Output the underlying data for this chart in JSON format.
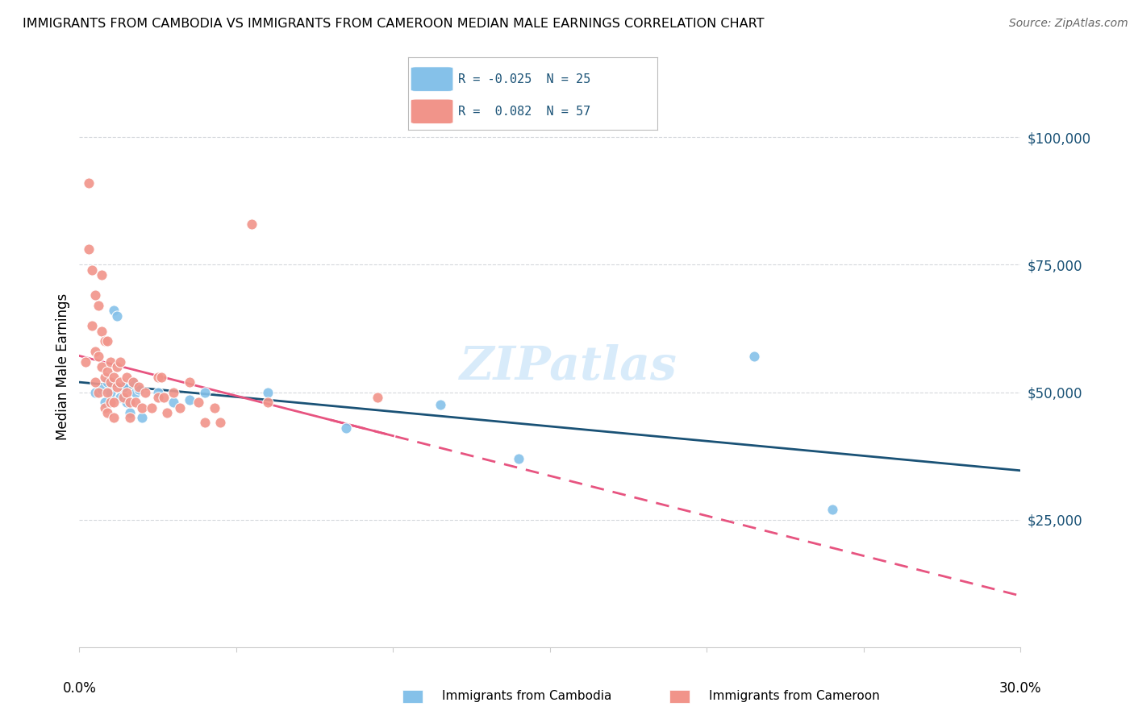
{
  "title": "IMMIGRANTS FROM CAMBODIA VS IMMIGRANTS FROM CAMEROON MEDIAN MALE EARNINGS CORRELATION CHART",
  "source": "Source: ZipAtlas.com",
  "ylabel": "Median Male Earnings",
  "y_ticks": [
    0,
    25000,
    50000,
    75000,
    100000
  ],
  "y_tick_labels": [
    "",
    "$25,000",
    "$50,000",
    "$75,000",
    "$100,000"
  ],
  "xlim": [
    0.0,
    0.3
  ],
  "ylim": [
    0,
    110000
  ],
  "watermark": "ZIPatlas",
  "cambodia_color": "#85c1e9",
  "cameroon_color": "#f1948a",
  "cambodia_line_color": "#1a5276",
  "cameroon_line_color": "#e75480",
  "background_color": "#ffffff",
  "grid_color": "#d5d8dc",
  "cambodia_points": [
    [
      0.005,
      50000
    ],
    [
      0.007,
      50500
    ],
    [
      0.008,
      48000
    ],
    [
      0.009,
      52000
    ],
    [
      0.01,
      50000
    ],
    [
      0.011,
      66000
    ],
    [
      0.012,
      65000
    ],
    [
      0.013,
      49000
    ],
    [
      0.014,
      51000
    ],
    [
      0.015,
      48000
    ],
    [
      0.016,
      46000
    ],
    [
      0.017,
      52000
    ],
    [
      0.018,
      50000
    ],
    [
      0.019,
      50500
    ],
    [
      0.02,
      45000
    ],
    [
      0.025,
      50000
    ],
    [
      0.03,
      48000
    ],
    [
      0.035,
      48500
    ],
    [
      0.04,
      50000
    ],
    [
      0.06,
      50000
    ],
    [
      0.085,
      43000
    ],
    [
      0.115,
      47500
    ],
    [
      0.14,
      37000
    ],
    [
      0.215,
      57000
    ],
    [
      0.24,
      27000
    ]
  ],
  "cameroon_points": [
    [
      0.002,
      56000
    ],
    [
      0.003,
      91000
    ],
    [
      0.003,
      78000
    ],
    [
      0.004,
      74000
    ],
    [
      0.004,
      63000
    ],
    [
      0.005,
      69000
    ],
    [
      0.005,
      58000
    ],
    [
      0.005,
      52000
    ],
    [
      0.006,
      67000
    ],
    [
      0.006,
      57000
    ],
    [
      0.006,
      50000
    ],
    [
      0.007,
      73000
    ],
    [
      0.007,
      62000
    ],
    [
      0.007,
      55000
    ],
    [
      0.008,
      60000
    ],
    [
      0.008,
      53000
    ],
    [
      0.008,
      47000
    ],
    [
      0.009,
      60000
    ],
    [
      0.009,
      54000
    ],
    [
      0.009,
      50000
    ],
    [
      0.009,
      46000
    ],
    [
      0.01,
      56000
    ],
    [
      0.01,
      52000
    ],
    [
      0.01,
      48000
    ],
    [
      0.011,
      53000
    ],
    [
      0.011,
      48000
    ],
    [
      0.011,
      45000
    ],
    [
      0.012,
      55000
    ],
    [
      0.012,
      51000
    ],
    [
      0.013,
      56000
    ],
    [
      0.013,
      52000
    ],
    [
      0.014,
      49000
    ],
    [
      0.015,
      53000
    ],
    [
      0.015,
      50000
    ],
    [
      0.016,
      48000
    ],
    [
      0.016,
      45000
    ],
    [
      0.017,
      52000
    ],
    [
      0.018,
      48000
    ],
    [
      0.019,
      51000
    ],
    [
      0.02,
      47000
    ],
    [
      0.021,
      50000
    ],
    [
      0.023,
      47000
    ],
    [
      0.025,
      53000
    ],
    [
      0.025,
      49000
    ],
    [
      0.026,
      53000
    ],
    [
      0.027,
      49000
    ],
    [
      0.028,
      46000
    ],
    [
      0.03,
      50000
    ],
    [
      0.032,
      47000
    ],
    [
      0.035,
      52000
    ],
    [
      0.038,
      48000
    ],
    [
      0.04,
      44000
    ],
    [
      0.043,
      47000
    ],
    [
      0.045,
      44000
    ],
    [
      0.055,
      83000
    ],
    [
      0.06,
      48000
    ],
    [
      0.095,
      49000
    ]
  ]
}
